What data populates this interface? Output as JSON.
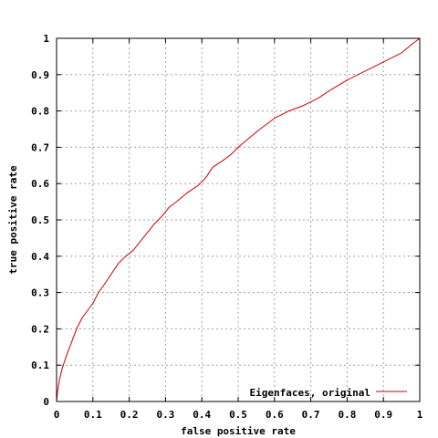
{
  "chart_data": {
    "type": "line",
    "title": "",
    "xlabel": "false positive rate",
    "ylabel": "true positive rate",
    "xlim": [
      0,
      1
    ],
    "ylim": [
      0,
      1
    ],
    "grid": true,
    "legend_position": "bottom-right",
    "x_ticks": [
      "0",
      "0.1",
      "0.2",
      "0.3",
      "0.4",
      "0.5",
      "0.6",
      "0.7",
      "0.8",
      "0.9",
      "1"
    ],
    "y_ticks": [
      "0",
      "0.1",
      "0.2",
      "0.3",
      "0.4",
      "0.5",
      "0.6",
      "0.7",
      "0.8",
      "0.9",
      "1"
    ],
    "series": [
      {
        "name": "Eigenfaces, original",
        "color": "#cc0000",
        "x": [
          0,
          0.003,
          0.008,
          0.015,
          0.025,
          0.04,
          0.055,
          0.07,
          0.085,
          0.1,
          0.115,
          0.13,
          0.15,
          0.17,
          0.19,
          0.21,
          0.23,
          0.25,
          0.27,
          0.29,
          0.31,
          0.33,
          0.36,
          0.39,
          0.41,
          0.43,
          0.46,
          0.48,
          0.5,
          0.53,
          0.56,
          0.6,
          0.64,
          0.68,
          0.72,
          0.75,
          0.8,
          0.85,
          0.9,
          0.95,
          0.98,
          1.0
        ],
        "y": [
          0,
          0.03,
          0.06,
          0.09,
          0.12,
          0.16,
          0.2,
          0.23,
          0.25,
          0.27,
          0.3,
          0.32,
          0.35,
          0.38,
          0.4,
          0.415,
          0.44,
          0.465,
          0.49,
          0.51,
          0.535,
          0.55,
          0.575,
          0.595,
          0.615,
          0.645,
          0.665,
          0.68,
          0.7,
          0.725,
          0.75,
          0.78,
          0.8,
          0.815,
          0.835,
          0.855,
          0.885,
          0.91,
          0.935,
          0.96,
          0.985,
          1.0
        ]
      }
    ]
  }
}
